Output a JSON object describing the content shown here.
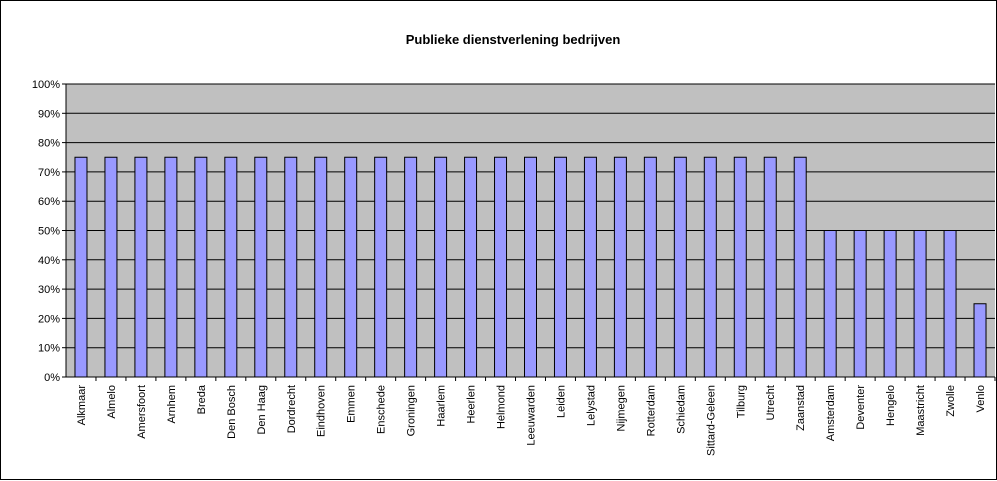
{
  "chart_data": {
    "type": "bar",
    "title": "Publieke dienstverlening bedrijven",
    "xlabel": "",
    "ylabel": "",
    "ylim": [
      0,
      100
    ],
    "y_ticks": [
      "0%",
      "10%",
      "20%",
      "30%",
      "40%",
      "50%",
      "60%",
      "70%",
      "80%",
      "90%",
      "100%"
    ],
    "grid": true,
    "legend": "none",
    "colors": {
      "bar": "#9999ff",
      "bar_border": "#000000",
      "plot_bg": "#c0c0c0",
      "grid": "#000000"
    },
    "categories": [
      "Alkmaar",
      "Almelo",
      "Amersfoort",
      "Arnhem",
      "Breda",
      "Den Bosch",
      "Den Haag",
      "Dordrecht",
      "Eindhoven",
      "Emmen",
      "Enschede",
      "Groningen",
      "Haarlem",
      "Heerlen",
      "Helmond",
      "Leeuwarden",
      "Leiden",
      "Lelystad",
      "Nijmegen",
      "Rotterdam",
      "Schiedam",
      "Sittard-Geleen",
      "Tilburg",
      "Utrecht",
      "Zaanstad",
      "Amsterdam",
      "Deventer",
      "Hengelo",
      "Maastricht",
      "Zwolle",
      "Venlo"
    ],
    "values": [
      75,
      75,
      75,
      75,
      75,
      75,
      75,
      75,
      75,
      75,
      75,
      75,
      75,
      75,
      75,
      75,
      75,
      75,
      75,
      75,
      75,
      75,
      75,
      75,
      75,
      50,
      50,
      50,
      50,
      50,
      25
    ]
  }
}
